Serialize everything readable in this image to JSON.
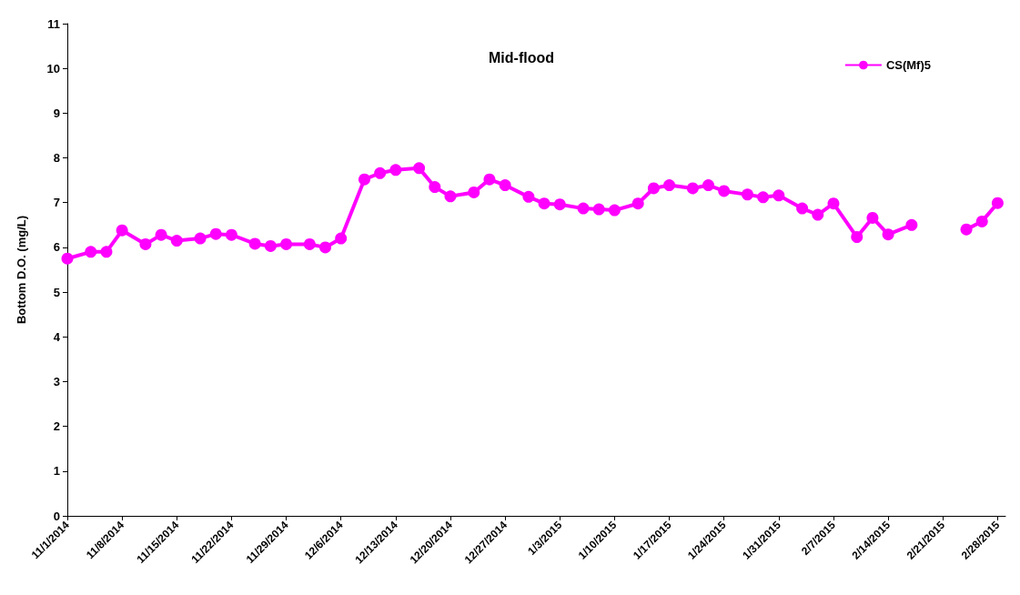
{
  "chart_data": {
    "type": "line",
    "title": "Mid-flood",
    "ylabel": "Bottom D.O. (mg/L)",
    "x": [
      "2014-11-01",
      "2014-11-04",
      "2014-11-06",
      "2014-11-08",
      "2014-11-11",
      "2014-11-13",
      "2014-11-15",
      "2014-11-18",
      "2014-11-20",
      "2014-11-22",
      "2014-11-25",
      "2014-11-27",
      "2014-11-29",
      "2014-12-02",
      "2014-12-04",
      "2014-12-06",
      "2014-12-09",
      "2014-12-11",
      "2014-12-13",
      "2014-12-16",
      "2014-12-18",
      "2014-12-20",
      "2014-12-23",
      "2014-12-25",
      "2014-12-27",
      "2014-12-30",
      "2015-01-01",
      "2015-01-03",
      "2015-01-06",
      "2015-01-08",
      "2015-01-10",
      "2015-01-13",
      "2015-01-15",
      "2015-01-17",
      "2015-01-20",
      "2015-01-22",
      "2015-01-24",
      "2015-01-27",
      "2015-01-29",
      "2015-01-31",
      "2015-02-03",
      "2015-02-05",
      "2015-02-07",
      "2015-02-10",
      "2015-02-12",
      "2015-02-14",
      "2015-02-17",
      "2015-02-20",
      "2015-02-24",
      "2015-02-26",
      "2015-02-28"
    ],
    "series": [
      {
        "name": "CS(Mf)5",
        "color": "#ff00ff",
        "values": [
          5.75,
          5.9,
          5.9,
          6.38,
          6.07,
          6.28,
          6.15,
          6.2,
          6.3,
          6.28,
          6.08,
          6.03,
          6.07,
          6.07,
          6.0,
          6.2,
          7.52,
          7.66,
          7.73,
          7.77,
          7.35,
          7.14,
          7.23,
          7.52,
          7.39,
          7.13,
          6.98,
          6.96,
          6.87,
          6.85,
          6.83,
          6.98,
          7.32,
          7.39,
          7.32,
          7.39,
          7.26,
          7.18,
          7.12,
          7.16,
          6.87,
          6.73,
          6.98,
          6.23,
          6.66,
          6.29,
          6.5,
          null,
          6.4,
          6.58,
          6.99
        ]
      }
    ],
    "xlim": [
      "2014-11-01",
      "2015-03-01"
    ],
    "xticks": [
      {
        "value": "2014-11-01",
        "label": "11/1/2014"
      },
      {
        "value": "2014-11-08",
        "label": "11/8/2014"
      },
      {
        "value": "2014-11-15",
        "label": "11/15/2014"
      },
      {
        "value": "2014-11-22",
        "label": "11/22/2014"
      },
      {
        "value": "2014-11-29",
        "label": "11/29/2014"
      },
      {
        "value": "2014-12-06",
        "label": "12/6/2014"
      },
      {
        "value": "2014-12-13",
        "label": "12/13/2014"
      },
      {
        "value": "2014-12-20",
        "label": "12/20/2014"
      },
      {
        "value": "2014-12-27",
        "label": "12/27/2014"
      },
      {
        "value": "2015-01-03",
        "label": "1/3/2015"
      },
      {
        "value": "2015-01-10",
        "label": "1/10/2015"
      },
      {
        "value": "2015-01-17",
        "label": "1/17/2015"
      },
      {
        "value": "2015-01-24",
        "label": "1/24/2015"
      },
      {
        "value": "2015-01-31",
        "label": "1/31/2015"
      },
      {
        "value": "2015-02-07",
        "label": "2/7/2015"
      },
      {
        "value": "2015-02-14",
        "label": "2/14/2015"
      },
      {
        "value": "2015-02-21",
        "label": "2/21/2015"
      },
      {
        "value": "2015-02-28",
        "label": "2/28/2015"
      }
    ],
    "ylim": [
      0,
      11
    ],
    "yticks": [
      0,
      1,
      2,
      3,
      4,
      5,
      6,
      7,
      8,
      9,
      10,
      11
    ],
    "grid": false,
    "legend": "top right",
    "marker": "circle",
    "line_style": "solid"
  }
}
